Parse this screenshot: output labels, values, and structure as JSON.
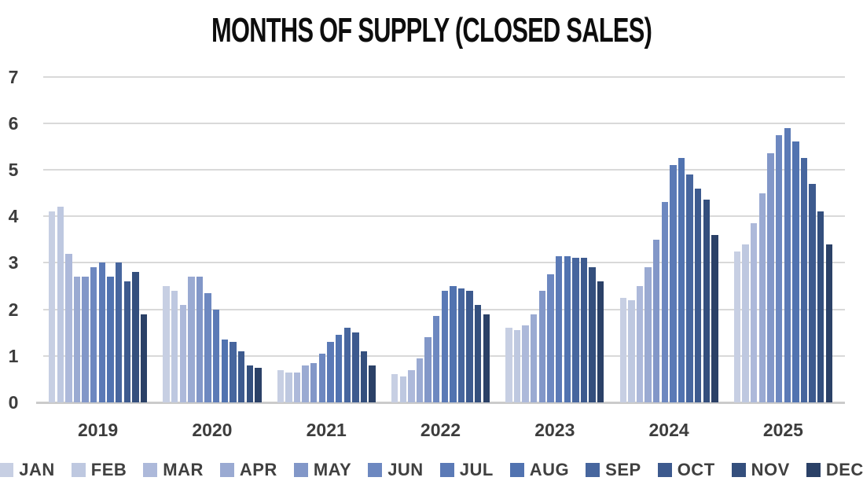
{
  "title": "MONTHS OF SUPPLY (CLOSED SALES)",
  "chart_data": {
    "type": "bar",
    "title": "MONTHS OF SUPPLY (CLOSED SALES)",
    "xlabel": "",
    "ylabel": "",
    "ylim": [
      0,
      7
    ],
    "yticks": [
      0,
      1,
      2,
      3,
      4,
      5,
      6,
      7
    ],
    "grid": true,
    "legend_position": "bottom",
    "categories": [
      "2019",
      "2020",
      "2021",
      "2022",
      "2023",
      "2024",
      "2025"
    ],
    "months": [
      "JAN",
      "FEB",
      "MAR",
      "APR",
      "MAY",
      "JUN",
      "JUL",
      "AUG",
      "SEP",
      "OCT",
      "NOV",
      "DEC"
    ],
    "month_colors": [
      "#c7cfe3",
      "#bec8e0",
      "#adb9da",
      "#9aaad2",
      "#8297c8",
      "#6d88c0",
      "#5b7ab6",
      "#5173b0",
      "#47669e",
      "#3d5a8e",
      "#344f7d",
      "#2b4167"
    ],
    "series": [
      {
        "name": "2019",
        "values": [
          4.1,
          4.2,
          3.2,
          2.7,
          2.7,
          2.9,
          3.0,
          2.7,
          3.0,
          2.6,
          2.8,
          1.9
        ]
      },
      {
        "name": "2020",
        "values": [
          2.5,
          2.4,
          2.1,
          2.7,
          2.7,
          2.35,
          2.0,
          1.35,
          1.3,
          1.1,
          0.8,
          0.75
        ]
      },
      {
        "name": "2021",
        "values": [
          0.7,
          0.65,
          0.65,
          0.8,
          0.85,
          1.05,
          1.3,
          1.45,
          1.6,
          1.5,
          1.1,
          0.8
        ]
      },
      {
        "name": "2022",
        "values": [
          0.6,
          0.55,
          0.7,
          0.95,
          1.4,
          1.85,
          2.4,
          2.5,
          2.45,
          2.4,
          2.1,
          1.9
        ]
      },
      {
        "name": "2023",
        "values": [
          1.6,
          1.55,
          1.65,
          1.9,
          2.4,
          2.75,
          3.15,
          3.15,
          3.1,
          3.1,
          2.9,
          2.6
        ]
      },
      {
        "name": "2024",
        "values": [
          2.25,
          2.2,
          2.5,
          2.9,
          3.5,
          4.3,
          5.1,
          5.25,
          4.9,
          4.6,
          4.35,
          3.6
        ]
      },
      {
        "name": "2025",
        "values": [
          3.25,
          3.4,
          3.85,
          4.5,
          5.35,
          5.75,
          5.9,
          5.6,
          5.25,
          4.7,
          4.1,
          3.4
        ]
      }
    ]
  },
  "colors": {
    "background": "#ffffff",
    "gridline": "#d9d9d9",
    "axis_line": "#cbcbcb",
    "axis_text": "#3d3d3d",
    "title_text": "#0d0d0d",
    "legend_text": "#404040"
  }
}
